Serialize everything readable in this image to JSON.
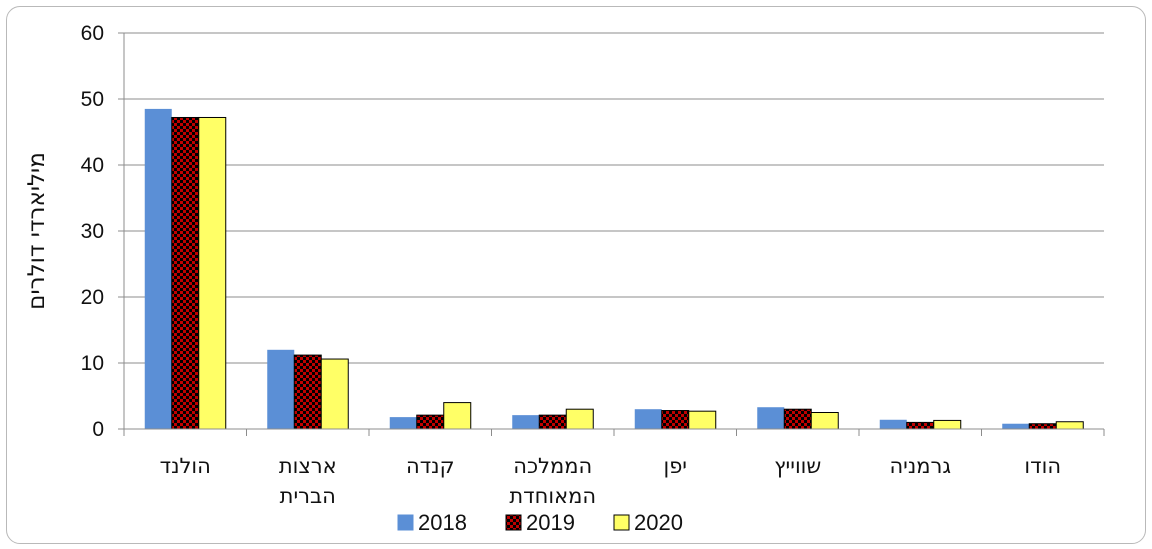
{
  "chart_data": {
    "type": "bar",
    "categories": [
      [
        "הולנד"
      ],
      [
        "ארצות",
        "הברית"
      ],
      [
        "קנדה"
      ],
      [
        "הממלכה",
        "המאוחדת"
      ],
      [
        "יפן"
      ],
      [
        "שווייץ"
      ],
      [
        "גרמניה"
      ],
      [
        "הודו"
      ]
    ],
    "series": [
      {
        "name": "2018",
        "color": "#5b8fd6",
        "pattern": "solid",
        "values": [
          48.5,
          12.0,
          1.8,
          2.1,
          3.0,
          3.3,
          1.4,
          0.8
        ]
      },
      {
        "name": "2019",
        "color": "#c00000",
        "pattern": "checker",
        "values": [
          47.2,
          11.2,
          2.1,
          2.1,
          2.8,
          3.0,
          1.0,
          0.8
        ]
      },
      {
        "name": "2020",
        "color": "#ffff66",
        "pattern": "solid",
        "values": [
          47.2,
          10.6,
          4.0,
          3.0,
          2.7,
          2.5,
          1.3,
          1.1
        ]
      }
    ],
    "ylabel": "מיליארדי דולרים",
    "xlabel": "",
    "ylim": [
      0,
      60
    ],
    "yticks": [
      0,
      10,
      20,
      30,
      40,
      50,
      60
    ],
    "grid": true,
    "legend": "bottom"
  }
}
